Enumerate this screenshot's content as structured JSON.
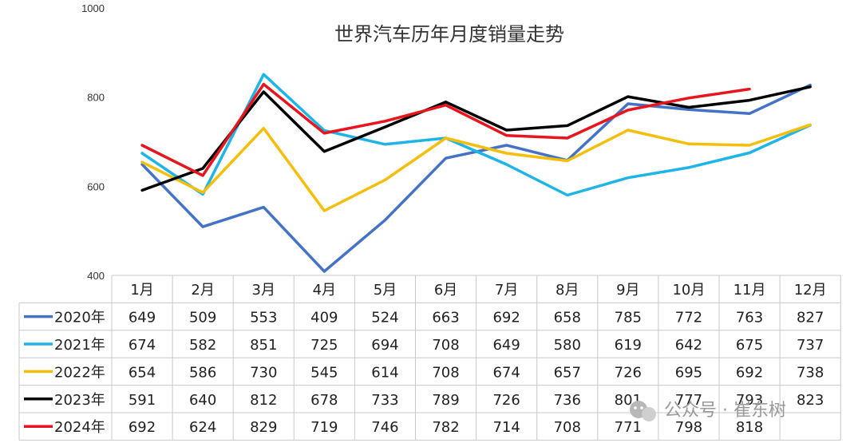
{
  "chart_data": {
    "type": "line",
    "title": "世界汽车历年月度销量走势",
    "categories": [
      "1月",
      "2月",
      "3月",
      "4月",
      "5月",
      "6月",
      "7月",
      "8月",
      "9月",
      "10月",
      "11月",
      "12月"
    ],
    "ylim": [
      400,
      1000
    ],
    "yticks": [
      400,
      600,
      800,
      1000
    ],
    "grid": false,
    "legend": "data-table",
    "series": [
      {
        "name": "2020年",
        "color": "#4472C4",
        "values": [
          649,
          509,
          553,
          409,
          524,
          663,
          692,
          658,
          785,
          772,
          763,
          827
        ]
      },
      {
        "name": "2021年",
        "color": "#1EB4E6",
        "values": [
          674,
          582,
          851,
          725,
          694,
          708,
          649,
          580,
          619,
          642,
          675,
          737
        ]
      },
      {
        "name": "2022年",
        "color": "#F5BE0A",
        "values": [
          654,
          586,
          730,
          545,
          614,
          708,
          674,
          657,
          726,
          695,
          692,
          738
        ]
      },
      {
        "name": "2023年",
        "color": "#000000",
        "values": [
          591,
          640,
          812,
          678,
          733,
          789,
          726,
          736,
          801,
          777,
          793,
          823
        ]
      },
      {
        "name": "2024年",
        "color": "#E8141E",
        "values": [
          692,
          624,
          829,
          719,
          746,
          782,
          714,
          708,
          771,
          798,
          818,
          null
        ]
      }
    ]
  },
  "watermark": {
    "text": "公众号 · 崔东树",
    "icon": "wechat-icon"
  }
}
